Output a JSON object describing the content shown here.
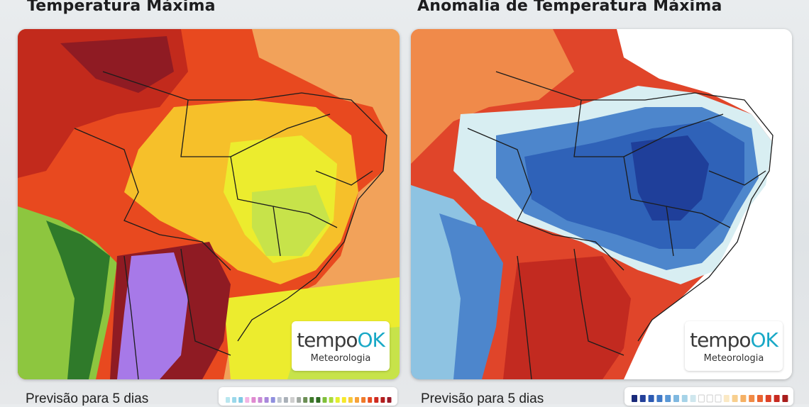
{
  "panels": [
    {
      "title": "Temperatura Máxima",
      "caption": "Previsão para 5 dias",
      "logo": {
        "word_a": "tempo",
        "word_b": "OK",
        "subtitle": "Meteorologia"
      },
      "legend_colors": [
        "#b8e6ef",
        "#9ad8ea",
        "#7fc9e4",
        "#f3b5e4",
        "#e08ad0",
        "#c98ad6",
        "#a988db",
        "#8f8fde",
        "#bfc6cf",
        "#a9b0b8",
        "#cfcfcf",
        "#9fa7a0",
        "#6c8f55",
        "#3f7a2a",
        "#2f6b23",
        "#7fbf3a",
        "#aadb3a",
        "#e4ee2e",
        "#f6e92a",
        "#f9c63a",
        "#f6a23a",
        "#f07a2a",
        "#e84d22",
        "#cf2a20",
        "#b31d1d",
        "#9a1b2a"
      ],
      "map_colors": {
        "ocean": "#f2a25a",
        "hot": "#e8491f",
        "very_hot": "#c22a1c",
        "extreme": "#8f1b23",
        "warm": "#f07a2a",
        "mild": "#f6c02a",
        "cool": "#ecec2e",
        "cooler": "#c7e34a",
        "green": "#8dc63f",
        "dark_green": "#2f7a2a",
        "purple": "#a779e8",
        "borders": "#1c1c1c"
      }
    },
    {
      "title": "Anomalia de Temperatura Máxima",
      "caption": "Previsão para 5 dias",
      "logo": {
        "word_a": "tempo",
        "word_b": "OK",
        "subtitle": "Meteorologia"
      },
      "legend_colors": [
        "#1a2a7a",
        "#23409a",
        "#2c5ab2",
        "#3f78c6",
        "#5a98d6",
        "#7fb8e0",
        "#a6d3e8",
        "#cfe7ee",
        "#ffffff",
        "#ffffff",
        "#ffffff",
        "#fbe9c4",
        "#f8cf8e",
        "#f5b064",
        "#f18a45",
        "#ea6532",
        "#dd4127",
        "#c72a20",
        "#a81d1c"
      ],
      "map_colors": {
        "ocean": "#ffffff",
        "deep_blue": "#1f3f9a",
        "blue": "#2f62b8",
        "mid_blue": "#4d86cc",
        "light_blue": "#8ec3e2",
        "pale": "#d8eef2",
        "orange": "#f08a4a",
        "red": "#e0452a",
        "dark_red": "#c22a20",
        "borders": "#1c1c1c"
      }
    }
  ]
}
